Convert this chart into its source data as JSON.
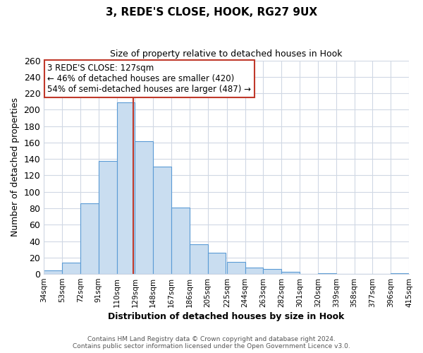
{
  "title": "3, REDE'S CLOSE, HOOK, RG27 9UX",
  "subtitle": "Size of property relative to detached houses in Hook",
  "xlabel": "Distribution of detached houses by size in Hook",
  "ylabel": "Number of detached properties",
  "bar_left_edges": [
    34,
    53,
    72,
    91,
    110,
    129,
    148,
    167,
    186,
    205,
    225,
    244,
    263,
    282,
    301,
    320,
    339,
    358,
    377,
    396
  ],
  "bar_heights": [
    4,
    14,
    86,
    138,
    209,
    162,
    131,
    81,
    36,
    26,
    15,
    8,
    6,
    3,
    0,
    1,
    0,
    0,
    0,
    1
  ],
  "bin_width": 19,
  "tick_labels": [
    "34sqm",
    "53sqm",
    "72sqm",
    "91sqm",
    "110sqm",
    "129sqm",
    "148sqm",
    "167sqm",
    "186sqm",
    "205sqm",
    "225sqm",
    "244sqm",
    "263sqm",
    "282sqm",
    "301sqm",
    "320sqm",
    "339sqm",
    "358sqm",
    "377sqm",
    "396sqm",
    "415sqm"
  ],
  "bar_color": "#c9ddf0",
  "bar_edge_color": "#5b9bd5",
  "vline_x": 127,
  "vline_color": "#c0392b",
  "ylim": [
    0,
    260
  ],
  "yticks": [
    0,
    20,
    40,
    60,
    80,
    100,
    120,
    140,
    160,
    180,
    200,
    220,
    240,
    260
  ],
  "annotation_title": "3 REDE'S CLOSE: 127sqm",
  "annotation_line1": "← 46% of detached houses are smaller (420)",
  "annotation_line2": "54% of semi-detached houses are larger (487) →",
  "annotation_box_color": "#ffffff",
  "annotation_box_edge": "#c0392b",
  "footer_line1": "Contains HM Land Registry data © Crown copyright and database right 2024.",
  "footer_line2": "Contains public sector information licensed under the Open Government Licence v3.0.",
  "background_color": "#ffffff",
  "grid_color": "#d0d8e4",
  "figwidth": 6.0,
  "figheight": 5.0,
  "dpi": 100
}
